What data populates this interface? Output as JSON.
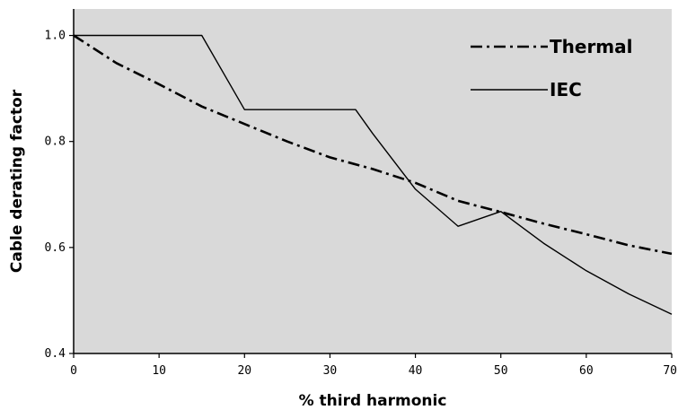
{
  "chart_data": {
    "type": "line",
    "xlabel": "% third harmonic",
    "ylabel": "Cable derating factor",
    "xlim": [
      0,
      70
    ],
    "ylim": [
      0.4,
      1.05
    ],
    "xticks": [
      0,
      10,
      20,
      30,
      40,
      50,
      60,
      70
    ],
    "xtick_labels": [
      "0",
      "10",
      "20",
      "30",
      "40",
      "50",
      "60",
      "70"
    ],
    "yticks": [
      0.4,
      0.6,
      0.8,
      1.0
    ],
    "ytick_labels": [
      "0.4",
      "0.6",
      "0.8",
      "1.0"
    ],
    "grid": false,
    "background": "#d9d9d9",
    "legend_position": "top-right",
    "series": [
      {
        "name": "Thermal",
        "style": "dash-dot",
        "color": "#000000",
        "x": [
          0,
          5,
          10,
          15,
          20,
          25,
          30,
          35,
          40,
          45,
          50,
          55,
          60,
          65,
          70
        ],
        "y": [
          1.0,
          0.948,
          0.908,
          0.866,
          0.833,
          0.8,
          0.77,
          0.748,
          0.722,
          0.688,
          0.667,
          0.645,
          0.625,
          0.604,
          0.588
        ]
      },
      {
        "name": "IEC",
        "style": "solid",
        "color": "#000000",
        "x": [
          0,
          15,
          20,
          33,
          35,
          40,
          45,
          50,
          55,
          60,
          65,
          70
        ],
        "y": [
          1.0,
          1.0,
          0.86,
          0.86,
          0.815,
          0.71,
          0.64,
          0.668,
          0.608,
          0.556,
          0.512,
          0.474
        ]
      }
    ]
  }
}
